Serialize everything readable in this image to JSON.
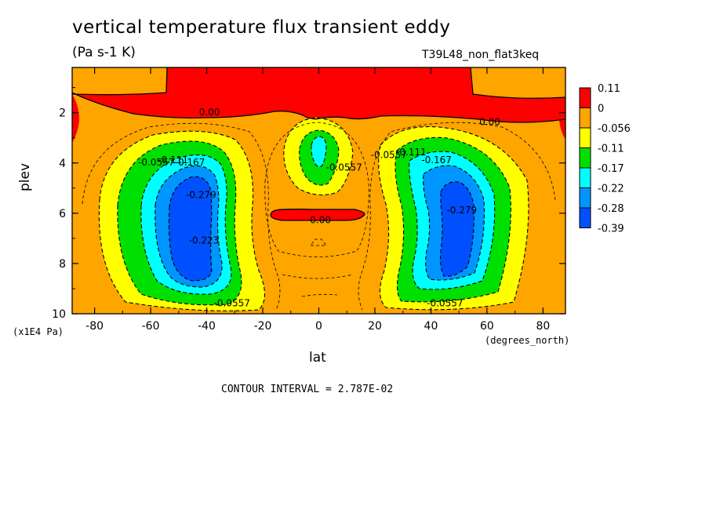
{
  "chart_data": {
    "type": "contour",
    "title": "vertical temperature flux transient eddy",
    "units": "(Pa s-1 K)",
    "run_name": "T39L48_non_flat3keq",
    "xlabel": "lat",
    "x_units": "(degrees_north)",
    "ylabel": "plev",
    "y_units": "(x1E4 Pa)",
    "contour_interval": "CONTOUR INTERVAL = 2.787E-02",
    "xlim": [
      -88,
      88
    ],
    "ylim": [
      10,
      0.2
    ],
    "x_ticks": [
      -80,
      -60,
      -40,
      -20,
      0,
      20,
      40,
      60,
      80
    ],
    "y_ticks": [
      2,
      4,
      6,
      8,
      10
    ],
    "legend": {
      "placement": "right",
      "levels": [
        "0.11",
        "0",
        "-0.056",
        "-0.11",
        "-0.17",
        "-0.22",
        "-0.28",
        "-0.39"
      ],
      "colors": [
        "#ff0000",
        "#ffa500",
        "#ffff00",
        "#00e000",
        "#00ffff",
        "#0096ff",
        "#0050ff"
      ]
    },
    "contour_labels": [
      {
        "text": "0.00",
        "x": -39,
        "y": 2.1
      },
      {
        "text": "0.00",
        "x": 61,
        "y": 2.5
      },
      {
        "text": "-0.0557",
        "x": -58,
        "y": 4.1
      },
      {
        "text": "-0.111",
        "x": -52,
        "y": 4.0
      },
      {
        "text": "-0.167",
        "x": -46,
        "y": 4.1
      },
      {
        "text": "-0.279",
        "x": -42,
        "y": 5.4
      },
      {
        "text": "-0.223",
        "x": -41,
        "y": 7.2
      },
      {
        "text": "-0.0557",
        "x": 9,
        "y": 4.3
      },
      {
        "text": "-0.00",
        "x": 0,
        "y": 6.4
      },
      {
        "text": "-0.0557",
        "x": -31,
        "y": 9.7
      },
      {
        "text": "-0.0557",
        "x": 25,
        "y": 3.8
      },
      {
        "text": "-0.111",
        "x": 33,
        "y": 3.7
      },
      {
        "text": "-0.167",
        "x": 42,
        "y": 4.0
      },
      {
        "text": "-0.279",
        "x": 51,
        "y": 6.0
      },
      {
        "text": "-0.0557",
        "x": 45,
        "y": 9.7
      }
    ],
    "features": [
      {
        "kind": "positive-band",
        "value_level": "0 to 0.11",
        "lat_range": [
          -88,
          88
        ],
        "plev_range": [
          0.2,
          3
        ]
      },
      {
        "kind": "negative-lobe",
        "center_lat": -44,
        "center_plev": 6.3,
        "min_level": "-0.39"
      },
      {
        "kind": "negative-lobe",
        "center_lat": 45,
        "center_plev": 6.3,
        "min_level": "-0.39"
      },
      {
        "kind": "negative-lobe",
        "center_lat": 0,
        "center_plev": 3.7,
        "min_level": "-0.17"
      },
      {
        "kind": "positive-band",
        "value_level": "0 to 0.11",
        "lat_range": [
          -17,
          17
        ],
        "plev_range": [
          5.9,
          6.3
        ]
      }
    ]
  }
}
